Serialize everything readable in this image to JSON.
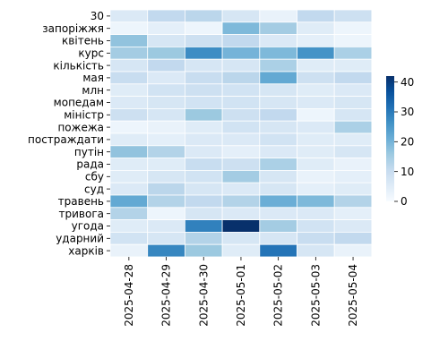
{
  "chart_data": {
    "type": "heatmap",
    "rows": [
      "30",
      "запоріжжя",
      "квітень",
      "курс",
      "кількість",
      "мая",
      "млн",
      "мопедам",
      "міністр",
      "пожежа",
      "постраждати",
      "путін",
      "рада",
      "сбу",
      "суд",
      "травень",
      "тривога",
      "угода",
      "ударний",
      "харків"
    ],
    "columns": [
      "2025-04-28",
      "2025-04-29",
      "2025-04-30",
      "2025-05-01",
      "2025-05-02",
      "2025-05-03",
      "2025-05-04"
    ],
    "values": [
      [
        6,
        11,
        12,
        7,
        3,
        11,
        9
      ],
      [
        2,
        4,
        2,
        19,
        15,
        5,
        2
      ],
      [
        17,
        7,
        9,
        11,
        6,
        4,
        2
      ],
      [
        15,
        16,
        27,
        20,
        19,
        26,
        14
      ],
      [
        7,
        11,
        7,
        7,
        14,
        5,
        5
      ],
      [
        10,
        6,
        10,
        12,
        22,
        9,
        11
      ],
      [
        5,
        8,
        9,
        8,
        7,
        5,
        6
      ],
      [
        6,
        7,
        8,
        8,
        7,
        6,
        7
      ],
      [
        9,
        7,
        16,
        9,
        11,
        2,
        7
      ],
      [
        2,
        3,
        5,
        8,
        7,
        6,
        14
      ],
      [
        5,
        4,
        6,
        6,
        8,
        5,
        5
      ],
      [
        17,
        13,
        6,
        4,
        6,
        5,
        7
      ],
      [
        5,
        5,
        10,
        9,
        14,
        5,
        3
      ],
      [
        5,
        7,
        8,
        15,
        7,
        3,
        4
      ],
      [
        6,
        12,
        7,
        6,
        7,
        4,
        5
      ],
      [
        22,
        13,
        11,
        13,
        21,
        19,
        13
      ],
      [
        13,
        2,
        7,
        6,
        6,
        6,
        4
      ],
      [
        5,
        6,
        29,
        42,
        15,
        8,
        6
      ],
      [
        8,
        7,
        13,
        7,
        7,
        10,
        11
      ],
      [
        3,
        28,
        16,
        5,
        31,
        7,
        3
      ]
    ],
    "colorbar": {
      "min": 0,
      "max": 42,
      "ticks": [
        0,
        10,
        20,
        30,
        40
      ]
    },
    "colormap": [
      "#f7fbff",
      "#deebf7",
      "#c6dbef",
      "#9ecae1",
      "#6baed6",
      "#4292c6",
      "#2171b5",
      "#08519c",
      "#08306b"
    ],
    "grid_line_color": "#ffffff"
  }
}
